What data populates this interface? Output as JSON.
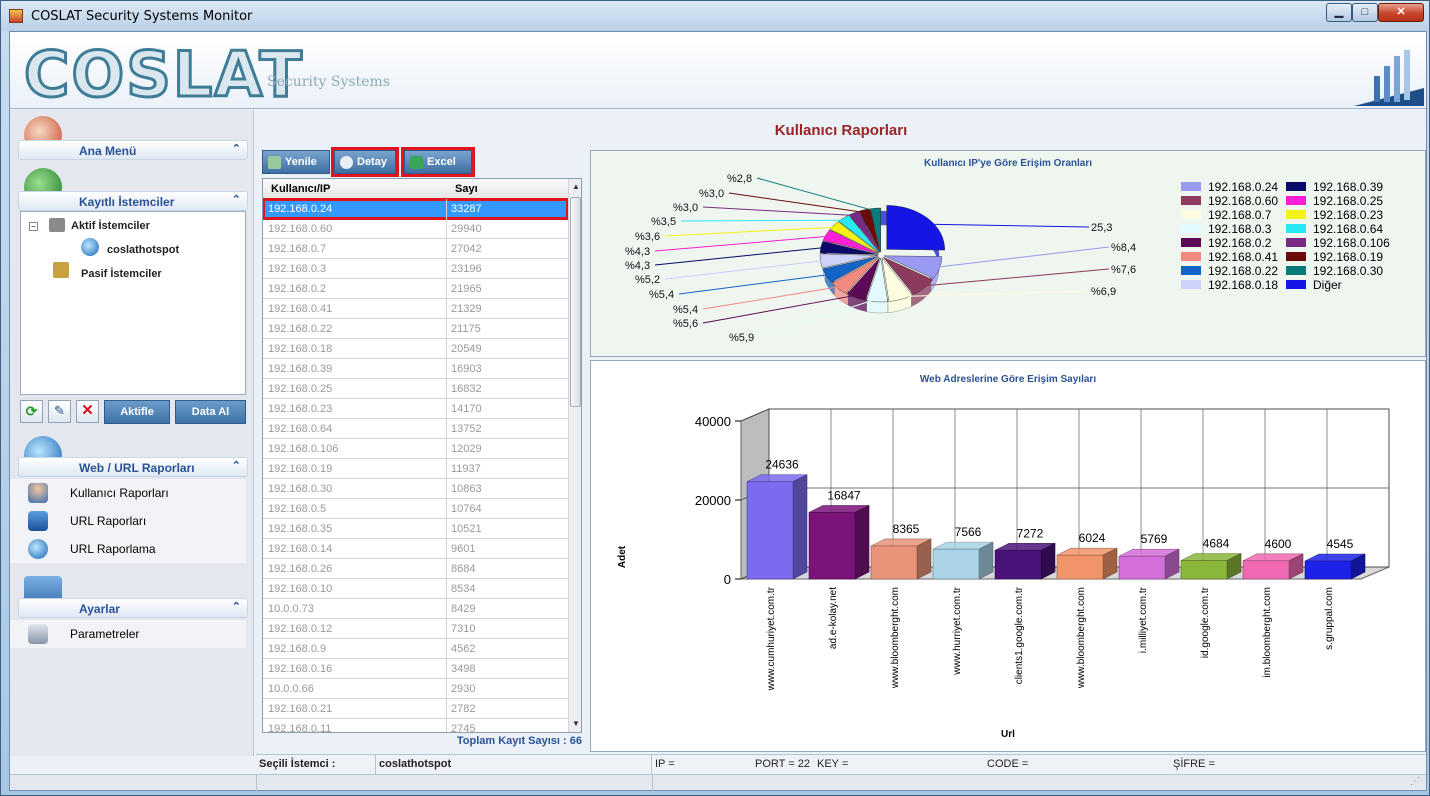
{
  "window": {
    "title": "COSLAT Security Systems Monitor"
  },
  "banner": {
    "logo": "COSLAT",
    "subtitle": "Security Systems"
  },
  "sidebar": {
    "home": {
      "label": "Ana Menü"
    },
    "clients": {
      "label": "Kayıtlı İstemciler",
      "tree": {
        "active": "Aktif İstemciler",
        "active_child": "coslathotspot",
        "passive": "Pasif İstemciler"
      },
      "buttons": {
        "activate": "Aktifle",
        "get_data": "Data Al"
      }
    },
    "web": {
      "label": "Web / URL Raporları",
      "items": [
        "Kullanıcı Raporları",
        "URL Raporları",
        "URL Raporlama"
      ]
    },
    "settings": {
      "label": "Ayarlar",
      "items": [
        "Parametreler"
      ]
    }
  },
  "main": {
    "title": "Kullanıcı Raporları",
    "toolbar": {
      "refresh": "Yenile",
      "detail": "Detay",
      "excel": "Excel"
    },
    "grid": {
      "headers": [
        "Kullanıcı/IP",
        "Sayı"
      ],
      "rows": [
        [
          "192.168.0.24",
          "33287"
        ],
        [
          "192.168.0.60",
          "29940"
        ],
        [
          "192.168.0.7",
          "27042"
        ],
        [
          "192.168.0.3",
          "23196"
        ],
        [
          "192.168.0.2",
          "21965"
        ],
        [
          "192.168.0.41",
          "21329"
        ],
        [
          "192.168.0.22",
          "21175"
        ],
        [
          "192.168.0.18",
          "20549"
        ],
        [
          "192.168.0.39",
          "16903"
        ],
        [
          "192.168.0.25",
          "16832"
        ],
        [
          "192.168.0.23",
          "14170"
        ],
        [
          "192.168.0.64",
          "13752"
        ],
        [
          "192.168.0.106",
          "12029"
        ],
        [
          "192.168.0.19",
          "11937"
        ],
        [
          "192.168.0.30",
          "10863"
        ],
        [
          "192.168.0.5",
          "10764"
        ],
        [
          "192.168.0.35",
          "10521"
        ],
        [
          "192.168.0.14",
          "9601"
        ],
        [
          "192.168.0.26",
          "8684"
        ],
        [
          "192.168.0.10",
          "8534"
        ],
        [
          "10.0.0.73",
          "8429"
        ],
        [
          "192.168.0.12",
          "7310"
        ],
        [
          "192.168.0.9",
          "4562"
        ],
        [
          "192.168.0.16",
          "3498"
        ],
        [
          "10.0.0.66",
          "2930"
        ],
        [
          "192.168.0.21",
          "2782"
        ],
        [
          "192.168.0.11",
          "2745"
        ]
      ],
      "total": "Toplam Kayıt Sayısı : 66"
    }
  },
  "chart_data": [
    {
      "type": "pie",
      "title": "Kullanıcı IP'ye Göre Erişim Oranları",
      "slice_labels": [
        "25,3",
        "%8,4",
        "%7,6",
        "%6,9",
        "%5,9",
        "%5,6",
        "%5,4",
        "%5,4",
        "%5,2",
        "%4,3",
        "%4,3",
        "%3,6",
        "%3,5",
        "%3,0",
        "%3,0",
        "%2,8"
      ],
      "legend": [
        "192.168.0.24",
        "192.168.0.39",
        "192.168.0.60",
        "192.168.0.25",
        "192.168.0.7",
        "192.168.0.23",
        "192.168.0.3",
        "192.168.0.64",
        "192.168.0.2",
        "192.168.0.106",
        "192.168.0.41",
        "192.168.0.19",
        "192.168.0.22",
        "192.168.0.30",
        "192.168.0.18",
        "Diğer"
      ],
      "colors": [
        "#9a9af2",
        "#0a0a6a",
        "#8c3a5e",
        "#ff1fd6",
        "#fdfde0",
        "#f4f414",
        "#e3fbff",
        "#29e8f4",
        "#5c0a55",
        "#7a2a86",
        "#f28a80",
        "#6a0a0a",
        "#1464c8",
        "#0a7a7a",
        "#cdd2fb",
        "#1515e6"
      ]
    },
    {
      "type": "bar",
      "title": "Web Adreslerine Göre Erişim Sayıları",
      "xlabel": "Url",
      "ylabel": "Adet",
      "categories": [
        "www.cumhuriyet.com.tr",
        "ad.e-kolay.net",
        "www.bloomberght.com",
        "www.hurriyet.com.tr",
        "clients1.google.com.tr",
        "www.bloomberght.com",
        "i.milliyet.com.tr",
        "id.google.com.tr",
        "im.bloomberght.com",
        "s.gruppal.com"
      ],
      "values": [
        24636,
        16847,
        8365,
        7566,
        7272,
        6024,
        5769,
        4684,
        4600,
        4545
      ],
      "yticks": [
        "0",
        "20000",
        "40000"
      ],
      "ylim": [
        0,
        40000
      ],
      "colors": [
        "#7b6bef",
        "#7a137a",
        "#e9937a",
        "#a9d3e6",
        "#4a137a",
        "#f2946a",
        "#d46ed9",
        "#8ab63a",
        "#f06ab3",
        "#1c22e6"
      ]
    }
  ],
  "status": {
    "selected_label": "Seçili İstemci :",
    "selected_value": "coslathotspot",
    "ip": "IP =",
    "port": "PORT = 22",
    "key": "KEY =",
    "code": "CODE =",
    "password": "ŞİFRE ="
  }
}
